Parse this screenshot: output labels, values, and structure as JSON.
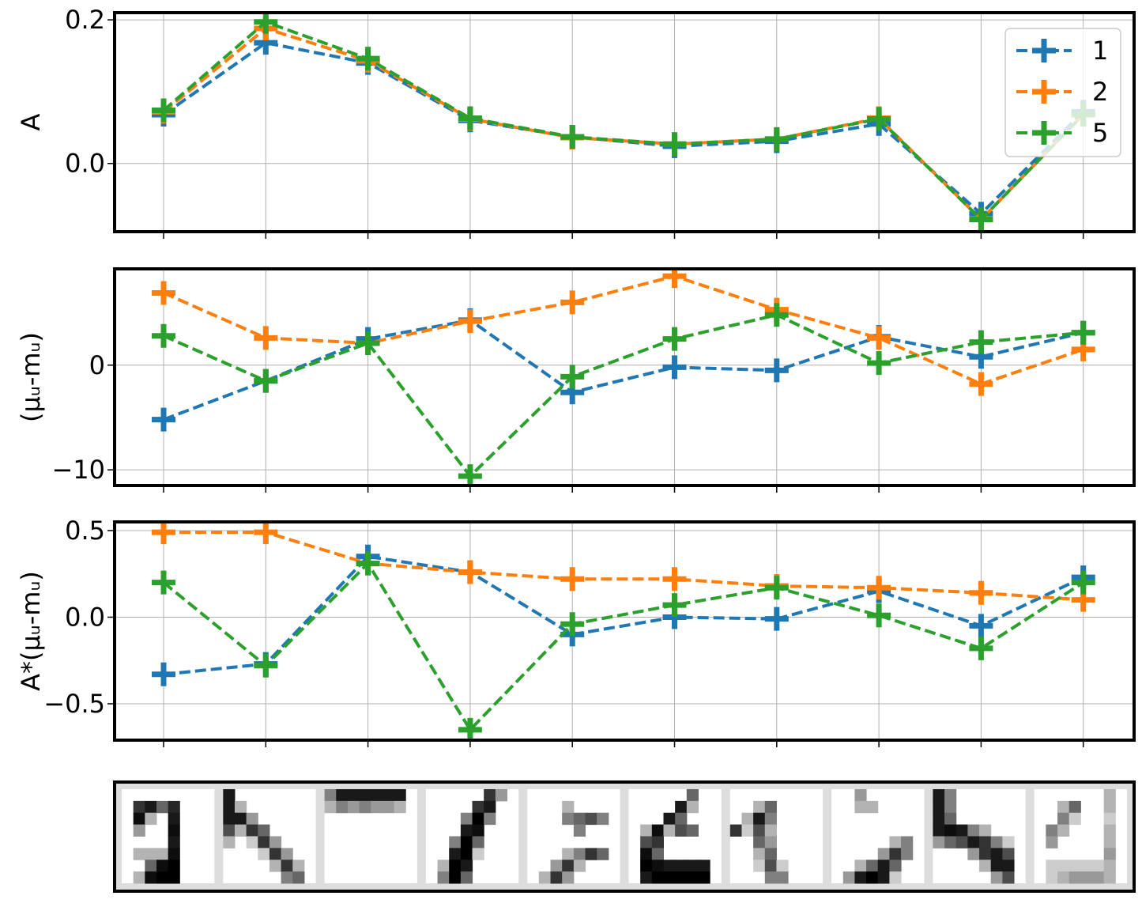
{
  "colors": {
    "1": "#1f77b4",
    "2": "#ff7f0e",
    "5": "#2ca02c",
    "grid": "#b0b0b0",
    "frame": "#000000"
  },
  "chart_data": [
    {
      "type": "line",
      "ylabel": "A",
      "x": [
        1,
        2,
        3,
        4,
        5,
        6,
        7,
        8,
        9,
        10
      ],
      "ylim": [
        -0.095,
        0.21
      ],
      "yticks": [
        0.0,
        0.2
      ],
      "ytick_labels": [
        "0.0",
        "0.2"
      ],
      "grid": true,
      "legend": "top-right",
      "series": [
        {
          "name": "1",
          "values": [
            0.068,
            0.168,
            0.14,
            0.06,
            0.037,
            0.024,
            0.031,
            0.055,
            -0.07,
            0.072
          ]
        },
        {
          "name": "2",
          "values": [
            0.072,
            0.188,
            0.143,
            0.062,
            0.036,
            0.027,
            0.034,
            0.063,
            -0.078,
            0.068
          ]
        },
        {
          "name": "5",
          "values": [
            0.074,
            0.197,
            0.146,
            0.063,
            0.037,
            0.027,
            0.034,
            0.062,
            -0.078,
            0.068
          ]
        }
      ]
    },
    {
      "type": "line",
      "ylabel": "(μᵤ-mᵤ)",
      "x": [
        1,
        2,
        3,
        4,
        5,
        6,
        7,
        8,
        9,
        10
      ],
      "ylim": [
        -11.5,
        9.2
      ],
      "yticks": [
        -10,
        0
      ],
      "ytick_labels": [
        "−10",
        "0"
      ],
      "grid": true,
      "series": [
        {
          "name": "1",
          "values": [
            -5.2,
            -1.5,
            2.5,
            4.3,
            -2.6,
            -0.2,
            -0.5,
            2.7,
            0.8,
            3.1
          ]
        },
        {
          "name": "2",
          "values": [
            6.9,
            2.6,
            2.1,
            4.2,
            6.0,
            8.5,
            5.3,
            2.6,
            -1.8,
            1.5
          ]
        },
        {
          "name": "5",
          "values": [
            2.8,
            -1.5,
            2.1,
            -10.6,
            -1.1,
            2.5,
            4.8,
            0.2,
            2.2,
            3.1
          ]
        }
      ]
    },
    {
      "type": "line",
      "ylabel": "A*(μᵤ-mᵤ)",
      "x": [
        1,
        2,
        3,
        4,
        5,
        6,
        7,
        8,
        9,
        10
      ],
      "ylim": [
        -0.71,
        0.55
      ],
      "yticks": [
        -0.5,
        0.0,
        0.5
      ],
      "ytick_labels": [
        "−0.5",
        "0.0",
        "0.5"
      ],
      "grid": true,
      "series": [
        {
          "name": "1",
          "values": [
            -0.33,
            -0.27,
            0.35,
            0.26,
            -0.1,
            0.0,
            -0.01,
            0.15,
            -0.05,
            0.23
          ]
        },
        {
          "name": "2",
          "values": [
            0.49,
            0.49,
            0.31,
            0.26,
            0.22,
            0.22,
            0.18,
            0.17,
            0.14,
            0.1
          ]
        },
        {
          "name": "5",
          "values": [
            0.2,
            -0.28,
            0.31,
            -0.65,
            -0.04,
            0.07,
            0.17,
            0.01,
            -0.18,
            0.2
          ]
        }
      ]
    }
  ],
  "patches": {
    "count": 10,
    "grid_size": 8,
    "values": [
      [
        [
          0,
          0,
          0,
          0,
          0,
          0,
          0,
          0
        ],
        [
          0,
          0.8,
          0.9,
          0.6,
          0.85,
          0,
          0,
          0
        ],
        [
          0,
          0.95,
          0.3,
          0,
          0.9,
          0,
          0,
          0
        ],
        [
          0,
          0.4,
          0,
          0,
          0.95,
          0,
          0,
          0
        ],
        [
          0,
          0,
          0,
          0,
          0.9,
          0,
          0,
          0
        ],
        [
          0,
          0.3,
          0.3,
          0.3,
          0.95,
          0,
          0,
          0
        ],
        [
          0,
          0,
          0.6,
          0.95,
          1,
          0,
          0,
          0
        ],
        [
          0,
          0.3,
          0.95,
          1,
          1,
          0,
          0,
          0
        ]
      ],
      [
        [
          0.9,
          0,
          0,
          0,
          0,
          0,
          0,
          0
        ],
        [
          0.9,
          0.3,
          0,
          0,
          0,
          0,
          0,
          0
        ],
        [
          0.9,
          0.9,
          0.4,
          0,
          0,
          0,
          0,
          0
        ],
        [
          0.7,
          0.3,
          0.8,
          0.6,
          0,
          0,
          0,
          0
        ],
        [
          0.3,
          0,
          0.2,
          0.8,
          0.4,
          0,
          0,
          0
        ],
        [
          0,
          0,
          0,
          0.2,
          0.8,
          0.4,
          0,
          0
        ],
        [
          0,
          0,
          0,
          0,
          0.3,
          0.8,
          0.3,
          0
        ],
        [
          0,
          0,
          0,
          0,
          0,
          0.5,
          0.6,
          0
        ]
      ],
      [
        [
          0.5,
          0.9,
          0.9,
          0.9,
          0.9,
          0.9,
          0.9,
          0
        ],
        [
          0.3,
          0.5,
          0.4,
          0.5,
          0.4,
          0.4,
          0.3,
          0
        ],
        [
          0,
          0,
          0,
          0,
          0,
          0,
          0,
          0
        ],
        [
          0,
          0,
          0,
          0,
          0,
          0,
          0,
          0
        ],
        [
          0,
          0,
          0,
          0,
          0,
          0,
          0,
          0
        ],
        [
          0,
          0,
          0,
          0,
          0,
          0,
          0,
          0
        ],
        [
          0,
          0,
          0,
          0,
          0,
          0,
          0,
          0
        ],
        [
          0,
          0,
          0,
          0,
          0,
          0,
          0,
          0
        ]
      ],
      [
        [
          0,
          0,
          0,
          0,
          0,
          0.8,
          0.4,
          0
        ],
        [
          0,
          0,
          0,
          0,
          0.8,
          0.9,
          0,
          0
        ],
        [
          0,
          0,
          0,
          0.5,
          1,
          0.5,
          0,
          0
        ],
        [
          0,
          0,
          0,
          0.9,
          0.95,
          0,
          0,
          0
        ],
        [
          0,
          0,
          0.5,
          1,
          0.6,
          0,
          0,
          0
        ],
        [
          0,
          0,
          0.9,
          1,
          0.2,
          0,
          0,
          0
        ],
        [
          0,
          0.3,
          1,
          0.9,
          0,
          0,
          0,
          0
        ],
        [
          0,
          0.5,
          1,
          0.6,
          0,
          0,
          0,
          0
        ]
      ],
      [
        [
          0,
          0,
          0,
          0,
          0,
          0,
          0,
          0
        ],
        [
          0,
          0,
          0,
          0.3,
          0,
          0,
          0,
          0
        ],
        [
          0,
          0,
          0,
          0.5,
          0.6,
          0.7,
          0.5,
          0
        ],
        [
          0,
          0,
          0,
          0,
          0.5,
          0,
          0,
          0
        ],
        [
          0,
          0,
          0,
          0,
          0,
          0,
          0,
          0
        ],
        [
          0,
          0,
          0,
          0.3,
          0.5,
          0.8,
          0.6,
          0
        ],
        [
          0,
          0,
          0.4,
          0.8,
          0.3,
          0,
          0,
          0
        ],
        [
          0,
          0.3,
          0.8,
          0.4,
          0,
          0,
          0,
          0
        ]
      ],
      [
        [
          0,
          0,
          0,
          0,
          0,
          0.6,
          0,
          0
        ],
        [
          0,
          0,
          0,
          0,
          0.9,
          0.3,
          0,
          0
        ],
        [
          0,
          0,
          0,
          0.9,
          0.6,
          0,
          0,
          0
        ],
        [
          0,
          0.3,
          0.95,
          0.3,
          0.7,
          0.6,
          0,
          0
        ],
        [
          0,
          0.7,
          0.8,
          0,
          0,
          0,
          0,
          0
        ],
        [
          0,
          0.95,
          0.6,
          0,
          0,
          0,
          0,
          0
        ],
        [
          0,
          1,
          0.95,
          0.9,
          0.9,
          0.9,
          0.9,
          0
        ],
        [
          0,
          0.9,
          1,
          1,
          1,
          1,
          1,
          0
        ]
      ],
      [
        [
          0,
          0,
          0,
          0,
          0,
          0,
          0,
          0
        ],
        [
          0,
          0,
          0.3,
          0.6,
          0,
          0,
          0,
          0
        ],
        [
          0,
          0.3,
          0.9,
          0.5,
          0,
          0,
          0,
          0
        ],
        [
          0.8,
          0.2,
          0.7,
          0.3,
          0,
          0,
          0,
          0
        ],
        [
          0,
          0,
          0.6,
          0.4,
          0,
          0,
          0,
          0
        ],
        [
          0,
          0,
          0.3,
          0.6,
          0,
          0,
          0,
          0
        ],
        [
          0,
          0,
          0.2,
          0.7,
          0.2,
          0,
          0,
          0
        ],
        [
          0,
          0,
          0,
          0.5,
          0.5,
          0,
          0,
          0
        ]
      ],
      [
        [
          0,
          0,
          0.4,
          0,
          0,
          0,
          0,
          0
        ],
        [
          0,
          0,
          0.3,
          0.3,
          0,
          0,
          0,
          0
        ],
        [
          0,
          0,
          0,
          0,
          0,
          0,
          0,
          0
        ],
        [
          0,
          0,
          0,
          0,
          0,
          0,
          0,
          0
        ],
        [
          0,
          0,
          0,
          0,
          0,
          0.3,
          0.5,
          0
        ],
        [
          0,
          0,
          0,
          0,
          0.4,
          0.8,
          0.5,
          0
        ],
        [
          0,
          0,
          0.3,
          0.6,
          0.9,
          0.6,
          0,
          0
        ],
        [
          0,
          0.4,
          0.9,
          1,
          0.9,
          0.2,
          0,
          0
        ]
      ],
      [
        [
          0.9,
          0.5,
          0,
          0,
          0,
          0,
          0,
          0
        ],
        [
          0.9,
          0.5,
          0,
          0,
          0,
          0,
          0,
          0
        ],
        [
          0.9,
          0.6,
          0,
          0,
          0,
          0,
          0,
          0
        ],
        [
          0.9,
          0.95,
          0.9,
          0.5,
          0.3,
          0,
          0,
          0
        ],
        [
          0.4,
          0.6,
          0.7,
          0.9,
          0.8,
          0.5,
          0.2,
          0
        ],
        [
          0,
          0,
          0,
          0.4,
          0.8,
          0.9,
          0.7,
          0
        ],
        [
          0,
          0,
          0,
          0,
          0.3,
          0.9,
          0.9,
          0
        ],
        [
          0,
          0,
          0,
          0,
          0,
          0.4,
          0.7,
          0
        ]
      ],
      [
        [
          0,
          0,
          0,
          0,
          0,
          0,
          0.3,
          0
        ],
        [
          0,
          0,
          0.3,
          0.6,
          0,
          0,
          0.3,
          0
        ],
        [
          0,
          0,
          0.5,
          0.2,
          0,
          0,
          0.2,
          0
        ],
        [
          0,
          0.5,
          0.3,
          0,
          0,
          0,
          0.3,
          0
        ],
        [
          0,
          0.4,
          0,
          0,
          0,
          0,
          0.3,
          0
        ],
        [
          0,
          0,
          0,
          0,
          0,
          0,
          0.4,
          0
        ],
        [
          0,
          0.2,
          0.2,
          0.2,
          0.2,
          0.2,
          0.3,
          0
        ],
        [
          0,
          0.2,
          0.3,
          0.4,
          0.4,
          0.4,
          0.3,
          0
        ]
      ]
    ]
  }
}
